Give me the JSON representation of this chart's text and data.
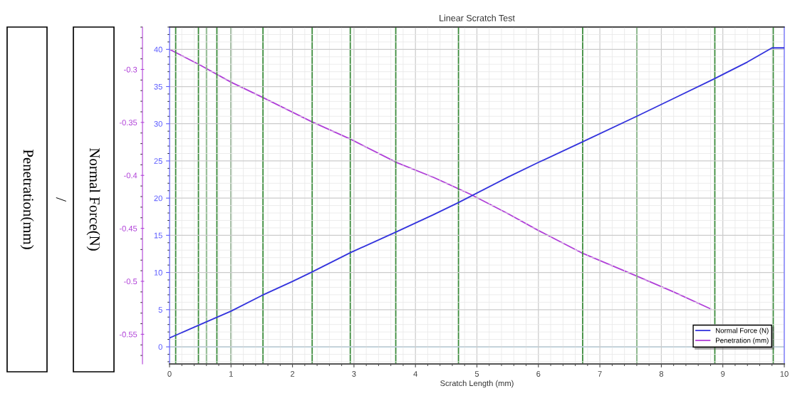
{
  "chart_data": {
    "type": "line",
    "title": "Linear Scratch Test",
    "xlabel": "Scratch Length (mm)",
    "annotations": [
      "Penetration(mm)",
      "/",
      "Normal Force(N)"
    ],
    "series": [
      {
        "name": "Normal Force (N)",
        "color": "#3333dd",
        "x": [
          0,
          0.5,
          1,
          1.5,
          2,
          2.3,
          2.95,
          3.7,
          4.3,
          4.7,
          5.5,
          6,
          6.7,
          7.6,
          8.2,
          8.85,
          9.4,
          9.8,
          10
        ],
        "values": [
          1.2,
          3,
          4.8,
          6.9,
          8.8,
          10,
          12.7,
          15.5,
          17.8,
          19.4,
          22.8,
          24.8,
          27.5,
          31,
          33.4,
          36,
          38.3,
          40.2,
          40.2
        ]
      },
      {
        "name": "Penetration (mm)",
        "color": "#b040d8",
        "axis": "y2",
        "x": [
          0,
          0.5,
          1,
          1.5,
          2.3,
          2.95,
          3.7,
          4.3,
          4.9,
          5.5,
          6,
          6.7,
          7.6,
          8.2,
          8.8
        ],
        "values": [
          -0.281,
          -0.296,
          -0.312,
          -0.326,
          -0.349,
          -0.366,
          -0.388,
          -0.402,
          -0.418,
          -0.436,
          -0.452,
          -0.473,
          -0.495,
          -0.51,
          -0.526
        ]
      }
    ],
    "xlim": [
      0,
      10
    ],
    "xticks": [
      0,
      1,
      2,
      3,
      4,
      5,
      6,
      7,
      8,
      9,
      10
    ],
    "ylim": [
      -2.3,
      43
    ],
    "yticks": [
      0,
      5,
      10,
      15,
      20,
      25,
      30,
      35,
      40
    ],
    "y2lim": [
      -0.578,
      -0.26
    ],
    "y2ticks": [
      -0.3,
      -0.35,
      -0.4,
      -0.45,
      -0.5,
      -0.55
    ],
    "ref_lines": [
      {
        "axis": "x",
        "value": 0.1,
        "color": "#3c8c3c"
      },
      {
        "axis": "x",
        "value": 0.47,
        "color": "#3c8c3c"
      },
      {
        "axis": "x",
        "value": 0.6,
        "color": "#3c8c3c"
      },
      {
        "axis": "x",
        "value": 0.77,
        "color": "#3c8c3c"
      },
      {
        "axis": "x",
        "value": 1.0,
        "color": "#3c8c3c"
      },
      {
        "axis": "x",
        "value": 1.52,
        "color": "#3c8c3c"
      },
      {
        "axis": "x",
        "value": 2.32,
        "color": "#3c8c3c"
      },
      {
        "axis": "x",
        "value": 2.94,
        "color": "#3c8c3c"
      },
      {
        "axis": "x",
        "value": 3.68,
        "color": "#3c8c3c"
      },
      {
        "axis": "x",
        "value": 4.7,
        "color": "#3c8c3c"
      },
      {
        "axis": "x",
        "value": 6.72,
        "color": "#3c8c3c"
      },
      {
        "axis": "x",
        "value": 7.6,
        "color": "#3c8c3c"
      },
      {
        "axis": "x",
        "value": 8.87,
        "color": "#3c8c3c"
      },
      {
        "axis": "x",
        "value": 9.82,
        "color": "#3c8c3c"
      },
      {
        "axis": "y",
        "value": 0,
        "color": "#9fd3ee"
      }
    ],
    "grid": true,
    "legend": "bottom right",
    "marker": "none",
    "line_style": "solid"
  }
}
